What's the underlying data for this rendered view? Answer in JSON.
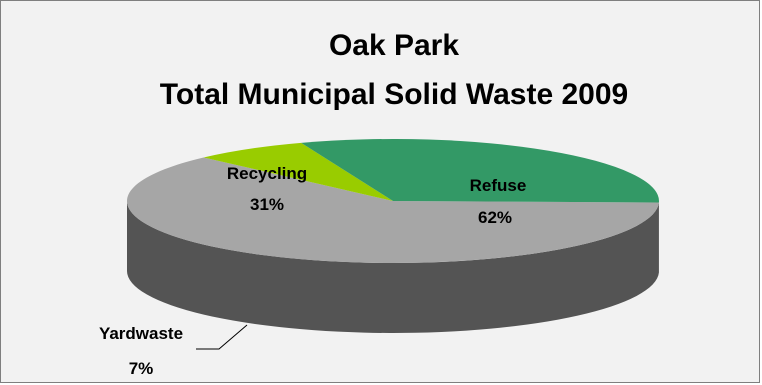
{
  "chart_data": {
    "type": "pie",
    "title_lines": [
      "Oak Park",
      "Total Municipal Solid Waste 2009"
    ],
    "slices": [
      {
        "label": "Refuse",
        "value": 62,
        "value_label": "62%",
        "color": "#a6a6a6",
        "side_color": "#545454"
      },
      {
        "label": "Yardwaste",
        "value": 7,
        "value_label": "7%",
        "color": "#99cc00",
        "side_color": "#4f6200"
      },
      {
        "label": "Recycling",
        "value": 31,
        "value_label": "31%",
        "color": "#339966",
        "side_color": "#1a4d33"
      }
    ],
    "three_d": true,
    "legend": "none",
    "background_color": "#f2f2f2",
    "border_color": "#7f7f7f"
  }
}
